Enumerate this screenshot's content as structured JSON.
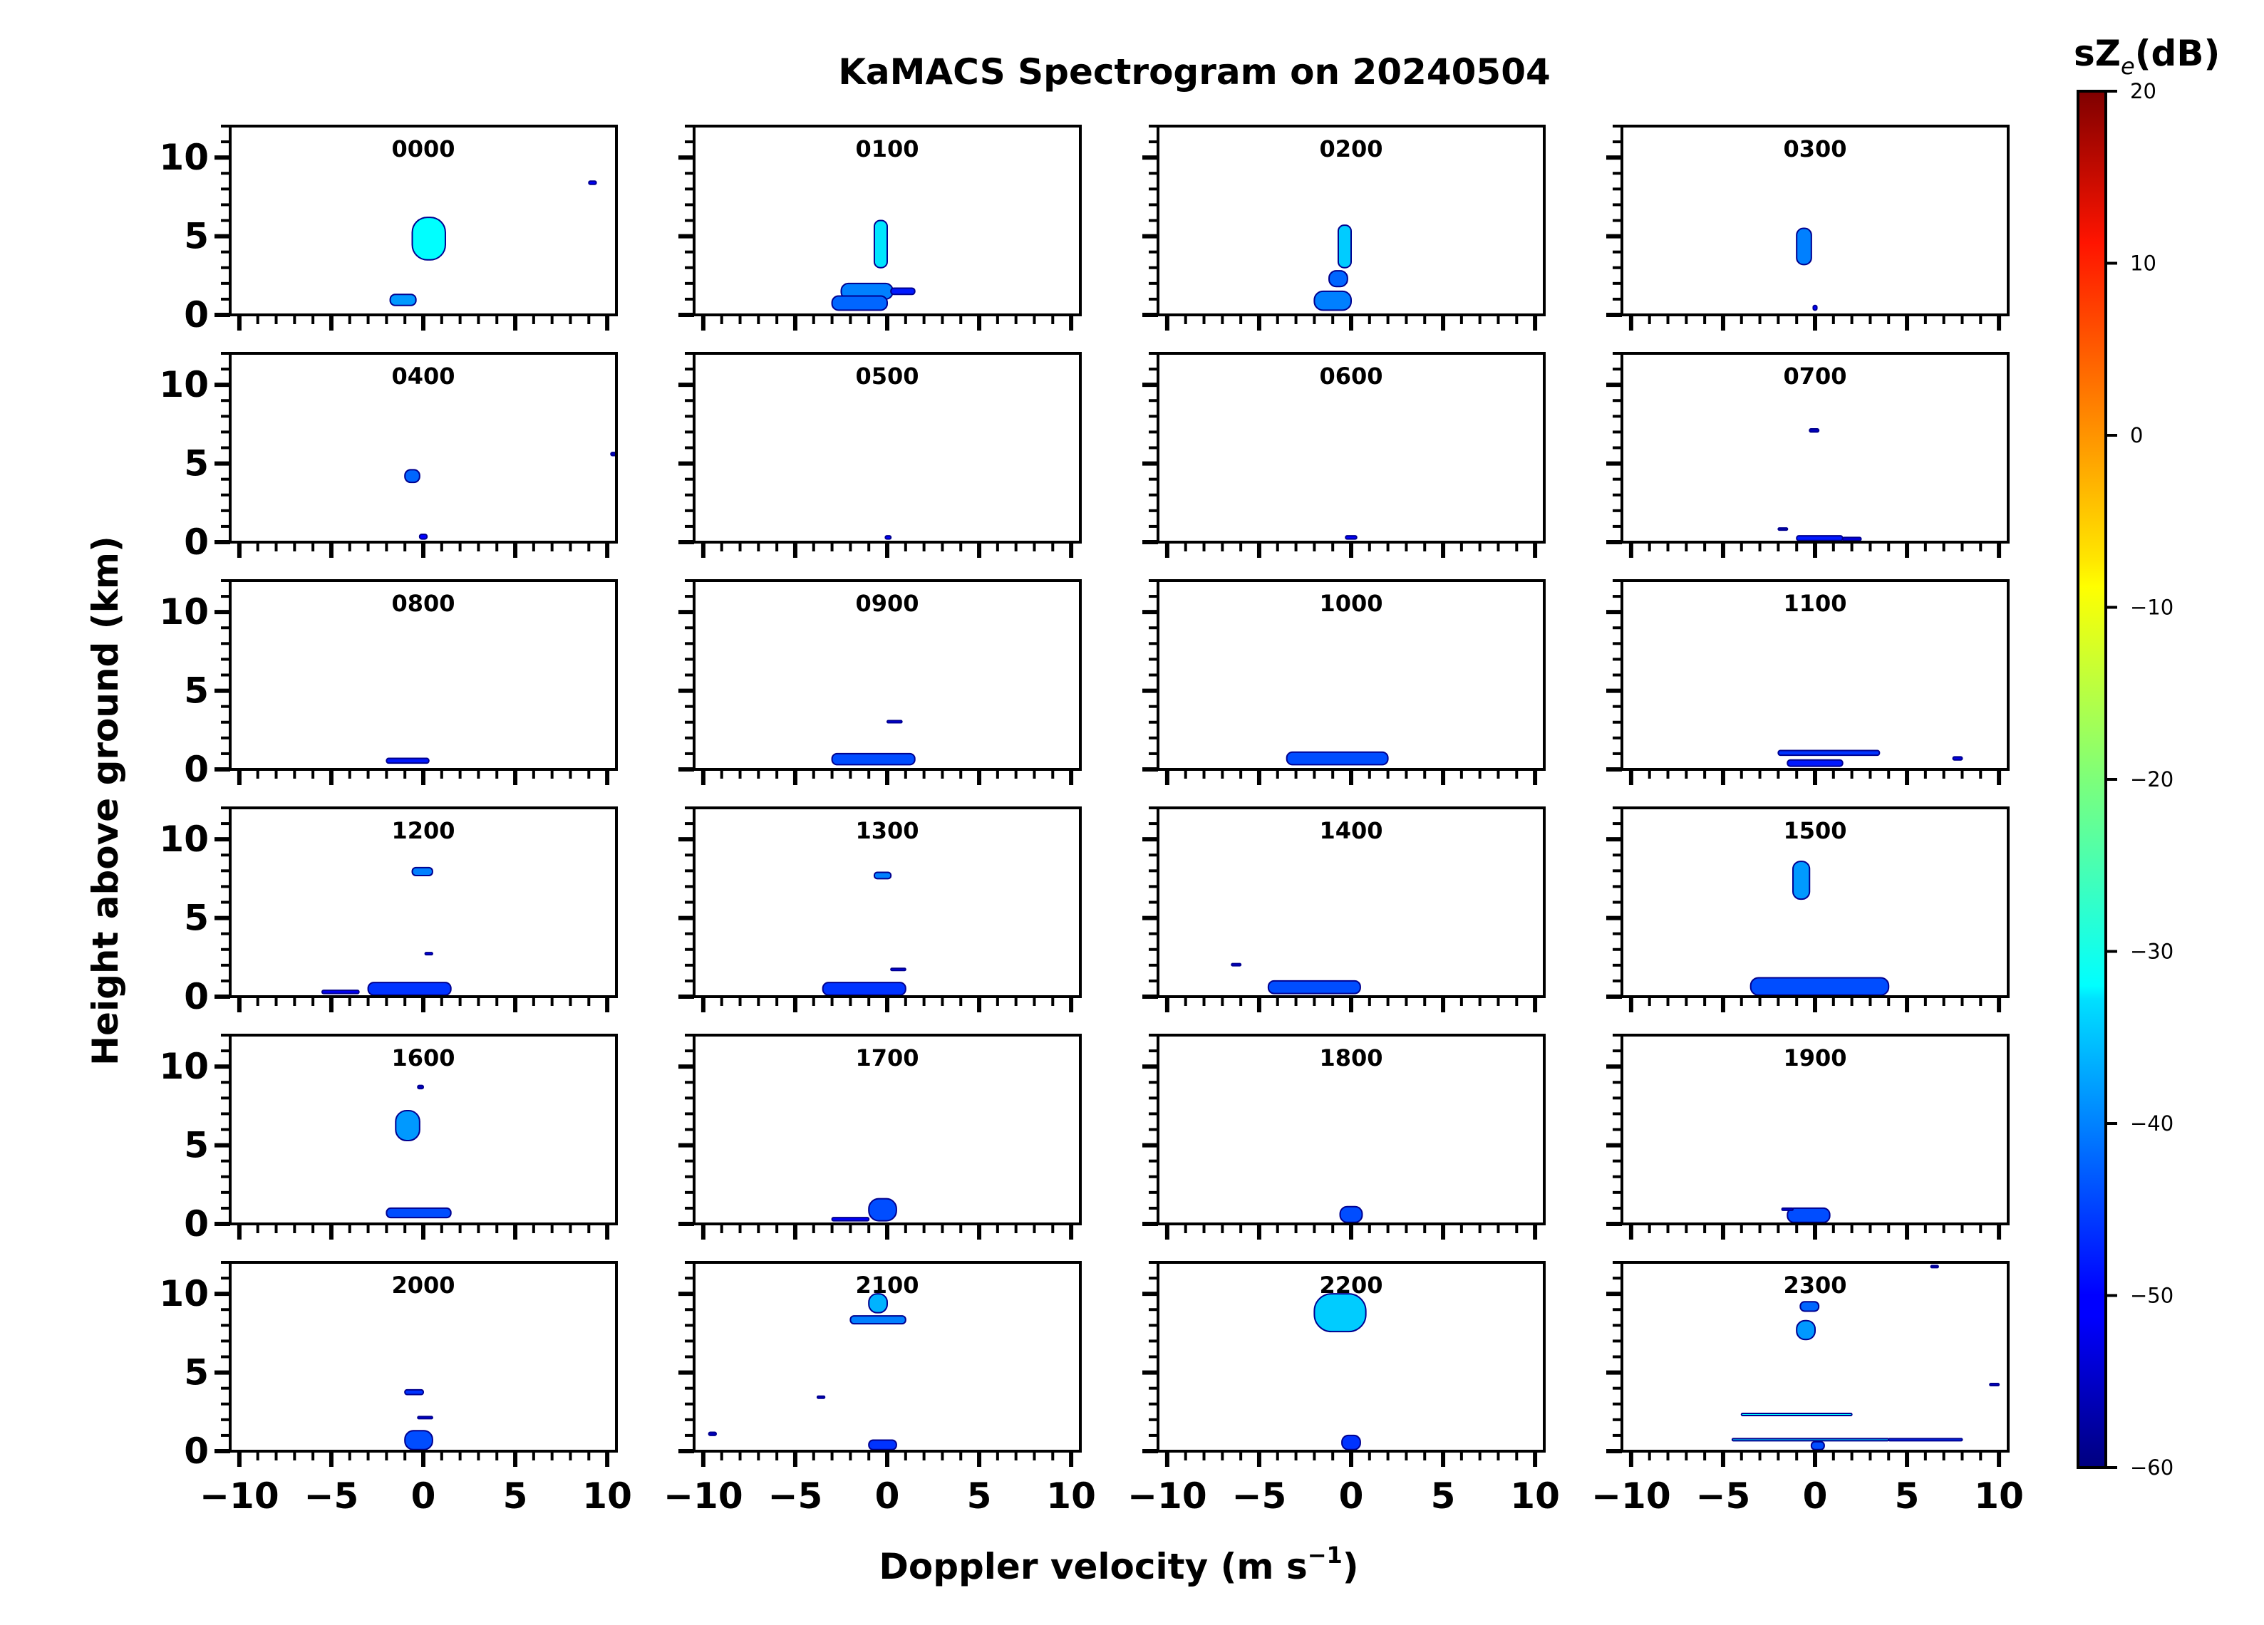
{
  "chart_data": {
    "type": "heatmap",
    "title": "KaMACS Spectrogram on 20240504",
    "xlabel": "Doppler velocity (m s",
    "xlabel_sup": "−1",
    "xlabel_end": ")",
    "ylabel": "Height above ground (km)",
    "xlim": [
      -10.5,
      10.5
    ],
    "ylim": [
      0,
      12
    ],
    "xticks": [
      -10,
      -5,
      0,
      5,
      10
    ],
    "xtick_labels": [
      "−10",
      "−5",
      "0",
      "5",
      "10"
    ],
    "yticks": [
      0,
      5,
      10
    ],
    "ytick_labels": [
      "0",
      "5",
      "10"
    ],
    "colorbar": {
      "title_main": "sZ",
      "title_sub": "e",
      "title_unit": "(dB)",
      "range": [
        -60,
        20
      ],
      "ticks": [
        20,
        10,
        0,
        -10,
        -20,
        -30,
        -40,
        -50,
        -60
      ],
      "tick_labels": [
        "20",
        "10",
        "0",
        "−10",
        "−20",
        "−30",
        "−40",
        "−50",
        "−60"
      ],
      "colormap": "jet"
    },
    "panels": [
      {
        "label": "0000",
        "blobs": [
          [
            -0.6,
            1.2,
            3.5,
            6.2,
            -30
          ],
          [
            -1.8,
            -0.4,
            0.6,
            1.3,
            -38
          ],
          [
            9.0,
            9.4,
            8.3,
            8.5,
            -50
          ]
        ]
      },
      {
        "label": "0100",
        "blobs": [
          [
            -0.7,
            0,
            3.0,
            6.0,
            -32
          ],
          [
            -2.5,
            0.3,
            1.0,
            2.0,
            -40
          ],
          [
            -3.0,
            0,
            0.3,
            1.2,
            -42
          ],
          [
            0.2,
            1.5,
            1.3,
            1.7,
            -48
          ]
        ]
      },
      {
        "label": "0200",
        "blobs": [
          [
            -0.7,
            0,
            3.0,
            5.7,
            -34
          ],
          [
            -2.0,
            0,
            0.3,
            1.5,
            -40
          ],
          [
            -1.2,
            -0.2,
            1.8,
            2.8,
            -42
          ]
        ]
      },
      {
        "label": "0300",
        "blobs": [
          [
            -1.0,
            -0.2,
            3.2,
            5.5,
            -40
          ],
          [
            -0.1,
            0.1,
            0.3,
            0.6,
            -50
          ]
        ]
      },
      {
        "label": "0400",
        "blobs": [
          [
            -1.0,
            -0.2,
            3.8,
            4.6,
            -42
          ],
          [
            -0.2,
            0.2,
            0.2,
            0.5,
            -50
          ],
          [
            10.2,
            10.5,
            5.5,
            5.7,
            -55
          ]
        ]
      },
      {
        "label": "0500",
        "blobs": [
          [
            -0.1,
            0.2,
            0.2,
            0.4,
            -50
          ]
        ]
      },
      {
        "label": "0600",
        "blobs": [
          [
            -0.3,
            0.3,
            0.2,
            0.4,
            -50
          ]
        ]
      },
      {
        "label": "0700",
        "blobs": [
          [
            -1.0,
            1.5,
            0.1,
            0.4,
            -48
          ],
          [
            1.5,
            2.5,
            0.1,
            0.3,
            -52
          ],
          [
            -0.3,
            0.2,
            7.0,
            7.2,
            -55
          ],
          [
            -2.0,
            -1.5,
            0.8,
            0.9,
            -55
          ]
        ]
      },
      {
        "label": "0800",
        "blobs": [
          [
            -2.0,
            0.3,
            0.4,
            0.7,
            -48
          ]
        ]
      },
      {
        "label": "0900",
        "blobs": [
          [
            -3.0,
            1.5,
            0.3,
            1.0,
            -44
          ],
          [
            0,
            0.8,
            3.0,
            3.1,
            -50
          ]
        ]
      },
      {
        "label": "1000",
        "blobs": [
          [
            -3.5,
            2.0,
            0.3,
            1.1,
            -44
          ]
        ]
      },
      {
        "label": "1100",
        "blobs": [
          [
            -2.0,
            3.5,
            0.9,
            1.2,
            -46
          ],
          [
            -1.5,
            1.5,
            0.2,
            0.6,
            -48
          ],
          [
            7.5,
            8.0,
            0.6,
            0.8,
            -52
          ]
        ]
      },
      {
        "label": "1200",
        "blobs": [
          [
            -0.6,
            0.5,
            7.7,
            8.2,
            -40
          ],
          [
            -3.0,
            1.5,
            0.1,
            0.9,
            -46
          ],
          [
            -5.5,
            -3.5,
            0.2,
            0.4,
            -50
          ],
          [
            0.1,
            0.5,
            2.7,
            2.8,
            -52
          ]
        ]
      },
      {
        "label": "1300",
        "blobs": [
          [
            -0.7,
            0.2,
            7.5,
            7.9,
            -40
          ],
          [
            -3.5,
            1.0,
            0.1,
            0.9,
            -46
          ],
          [
            0.2,
            1.0,
            1.7,
            1.8,
            -50
          ]
        ]
      },
      {
        "label": "1400",
        "blobs": [
          [
            -4.5,
            0.5,
            0.2,
            1.0,
            -44
          ],
          [
            -6.5,
            -6.0,
            2.0,
            2.1,
            -52
          ]
        ]
      },
      {
        "label": "1500",
        "blobs": [
          [
            -1.2,
            -0.3,
            6.2,
            8.6,
            -38
          ],
          [
            -3.5,
            4.0,
            0.1,
            1.2,
            -44
          ]
        ]
      },
      {
        "label": "1600",
        "blobs": [
          [
            -1.5,
            -0.2,
            5.3,
            7.2,
            -38
          ],
          [
            -2.0,
            1.5,
            0.4,
            1.0,
            -44
          ],
          [
            -0.3,
            0,
            8.6,
            8.8,
            -55
          ]
        ]
      },
      {
        "label": "1700",
        "blobs": [
          [
            -1.0,
            0.5,
            0.2,
            1.6,
            -44
          ],
          [
            -3.0,
            -1.0,
            0.2,
            0.4,
            -50
          ]
        ]
      },
      {
        "label": "1800",
        "blobs": [
          [
            -0.6,
            0.6,
            0.1,
            1.1,
            -44
          ]
        ]
      },
      {
        "label": "1900",
        "blobs": [
          [
            -1.5,
            0.8,
            0.1,
            1.0,
            -44
          ],
          [
            -1.8,
            -1.2,
            0.9,
            1.0,
            -52
          ]
        ]
      },
      {
        "label": "2000",
        "blobs": [
          [
            -1.0,
            0.5,
            0.1,
            1.3,
            -44
          ],
          [
            -1.0,
            0,
            3.6,
            3.9,
            -46
          ],
          [
            -0.3,
            0.5,
            2.1,
            2.2,
            -52
          ]
        ]
      },
      {
        "label": "2100",
        "blobs": [
          [
            -1.0,
            0,
            8.8,
            10.0,
            -36
          ],
          [
            -2.0,
            1.0,
            8.1,
            8.6,
            -40
          ],
          [
            -1.0,
            0.5,
            0.1,
            0.7,
            -46
          ],
          [
            -3.8,
            -3.4,
            3.4,
            3.5,
            -55
          ],
          [
            -9.7,
            -9.3,
            1.0,
            1.2,
            -55
          ]
        ]
      },
      {
        "label": "2200",
        "blobs": [
          [
            -2.0,
            0.8,
            7.6,
            10.0,
            -34
          ],
          [
            -0.5,
            0.5,
            0.1,
            1.0,
            -46
          ]
        ]
      },
      {
        "label": "2300",
        "blobs": [
          [
            -1.0,
            0,
            7.1,
            8.3,
            -38
          ],
          [
            -0.8,
            0.2,
            8.9,
            9.5,
            -42
          ],
          [
            -4.0,
            2.0,
            2.3,
            2.4,
            -30
          ],
          [
            -4.5,
            4.0,
            0.7,
            0.8,
            -34
          ],
          [
            4.0,
            8.0,
            0.7,
            0.8,
            -46
          ],
          [
            -0.2,
            0.5,
            0.1,
            0.6,
            -44
          ],
          [
            9.5,
            10.0,
            4.2,
            4.3,
            -55
          ],
          [
            6.3,
            6.7,
            11.7,
            11.8,
            -55
          ]
        ]
      }
    ]
  }
}
